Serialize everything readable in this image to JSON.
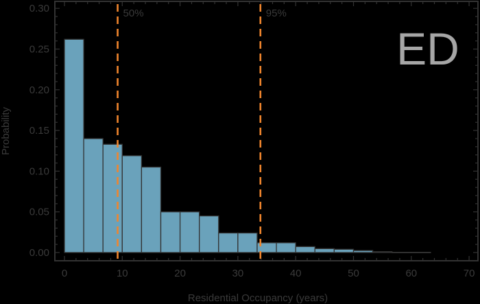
{
  "chart_data": {
    "type": "bar",
    "title": "",
    "annotation": "ED",
    "xlabel": "Residential Occupancy (years)",
    "ylabel": "Probability",
    "xlim": [
      -1.7,
      71.3
    ],
    "ylim": [
      -0.01,
      0.309
    ],
    "xticks": [
      0,
      10,
      20,
      30,
      40,
      50,
      60,
      70
    ],
    "yticks": [
      0.0,
      0.05,
      0.1,
      0.15,
      0.2,
      0.25,
      0.3
    ],
    "ytick_labels": [
      "0.00",
      "0.05",
      "0.10",
      "0.15",
      "0.20",
      "0.25",
      "0.30"
    ],
    "bin_width": 3.333,
    "bin_edges": [
      0,
      3.333,
      6.667,
      10,
      13.333,
      16.667,
      20,
      23.333,
      26.667,
      30,
      33.333,
      36.667,
      40,
      43.333,
      46.667,
      50,
      53.333,
      56.667,
      60,
      63.333
    ],
    "values": [
      0.262,
      0.14,
      0.133,
      0.119,
      0.105,
      0.05,
      0.05,
      0.045,
      0.024,
      0.024,
      0.012,
      0.012,
      0.0073,
      0.0048,
      0.004,
      0.0025,
      0.0011,
      0.0003,
      0.0003
    ],
    "reference_lines": [
      {
        "label": "50%",
        "x": 9.2,
        "color": "#f0852d",
        "style": "dashed"
      },
      {
        "label": "95%",
        "x": 33.9,
        "color": "#f0852d",
        "style": "dashed"
      }
    ],
    "bar_color": "#6aa2bb",
    "bar_edge_color": "#333333",
    "grid": false,
    "legend": "none"
  }
}
